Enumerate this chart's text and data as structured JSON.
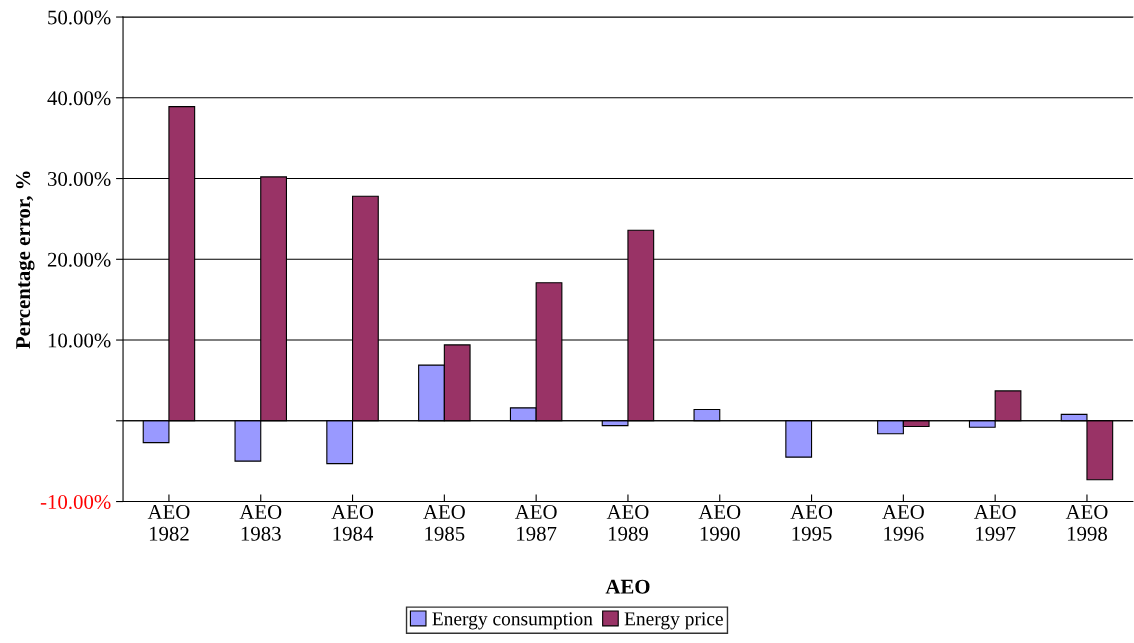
{
  "chart_data": {
    "type": "bar",
    "xlabel": "AEO",
    "ylabel": "Percentage error, %",
    "categories": [
      "AEO\n1982",
      "AEO\n1983",
      "AEO\n1984",
      "AEO\n1985",
      "AEO\n1987",
      "AEO\n1989",
      "AEO\n1990",
      "AEO\n1995",
      "AEO\n1996",
      "AEO\n1997",
      "AEO\n1998"
    ],
    "series": [
      {
        "name": "Energy consumption",
        "color": "#9999ff",
        "values": [
          -2.7,
          -5.0,
          -5.3,
          6.9,
          1.6,
          -0.6,
          1.4,
          -4.5,
          -1.6,
          -0.8,
          0.8
        ]
      },
      {
        "name": "Energy price",
        "color": "#993366",
        "values": [
          38.9,
          30.2,
          27.8,
          9.4,
          17.1,
          23.6,
          null,
          null,
          -0.7,
          3.7,
          -7.3
        ]
      }
    ],
    "ylim": [
      -10,
      50
    ],
    "yticks": [
      {
        "value": -10,
        "label": "-10.00%"
      },
      {
        "value": 0,
        "label": null
      },
      {
        "value": 10,
        "label": "10.00%"
      },
      {
        "value": 20,
        "label": "20.00%"
      },
      {
        "value": 30,
        "label": "30.00%"
      },
      {
        "value": 40,
        "label": "40.00%"
      },
      {
        "value": 50,
        "label": "50.00%"
      }
    ],
    "grid": "y",
    "legend": "bottom"
  }
}
